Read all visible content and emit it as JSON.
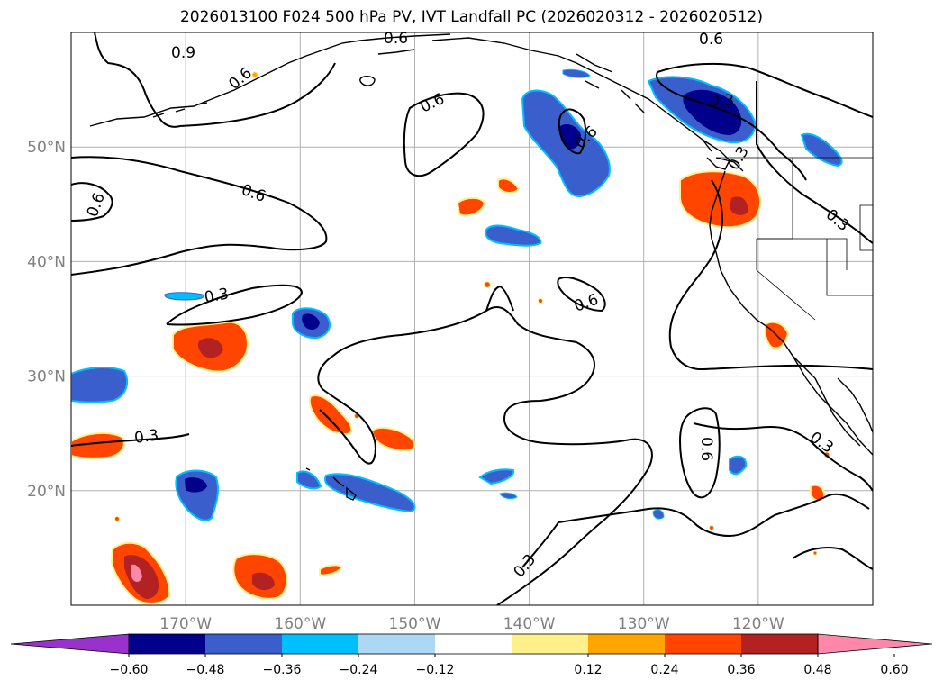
{
  "title": "2026013100 F024 500 hPa PV, IVT Landfall PC (2026020312 - 2026020512)",
  "map": {
    "lon_range": [
      -180,
      -110
    ],
    "lat_range": [
      10,
      60
    ],
    "lat_ticks": [
      {
        "value": 50,
        "label": "50°N"
      },
      {
        "value": 40,
        "label": "40°N"
      },
      {
        "value": 30,
        "label": "30°N"
      },
      {
        "value": 20,
        "label": "20°N"
      }
    ],
    "lon_ticks": [
      {
        "value": -170,
        "label": "170°W"
      },
      {
        "value": -160,
        "label": "160°W"
      },
      {
        "value": -150,
        "label": "150°W"
      },
      {
        "value": -140,
        "label": "140°W"
      },
      {
        "value": -130,
        "label": "130°W"
      },
      {
        "value": -120,
        "label": "120°W"
      }
    ],
    "grid": true,
    "contour_labels": [
      "0.9",
      "0.6",
      "0.6",
      "0.6",
      "0.6",
      "0.6",
      "0.6",
      "0.3",
      "0.3",
      "0.6",
      "0.3",
      "0.3",
      "0.3",
      "0.6",
      "0.3",
      "0.3"
    ]
  },
  "colorbar": {
    "ticks": [
      "−0.60",
      "−0.48",
      "−0.36",
      "−0.24",
      "−0.12",
      "0.12",
      "0.24",
      "0.36",
      "0.48",
      "0.60"
    ],
    "colors": [
      "#9932cc",
      "#00008b",
      "#3a5fcd",
      "#00bfff",
      "#add8f5",
      "#ffffff",
      "#fff08c",
      "#ffa500",
      "#ff4500",
      "#b22222",
      "#ff88aa"
    ]
  },
  "fill_colors": {
    "blue_dark": "#00008b",
    "blue_mid": "#3a5fcd",
    "blue_light": "#00bfff",
    "orange": "#ff4500",
    "red_dark": "#b22222",
    "pink": "#ff88aa",
    "yellow_edge": "#fff08c",
    "orange_edge": "#ffa500"
  }
}
